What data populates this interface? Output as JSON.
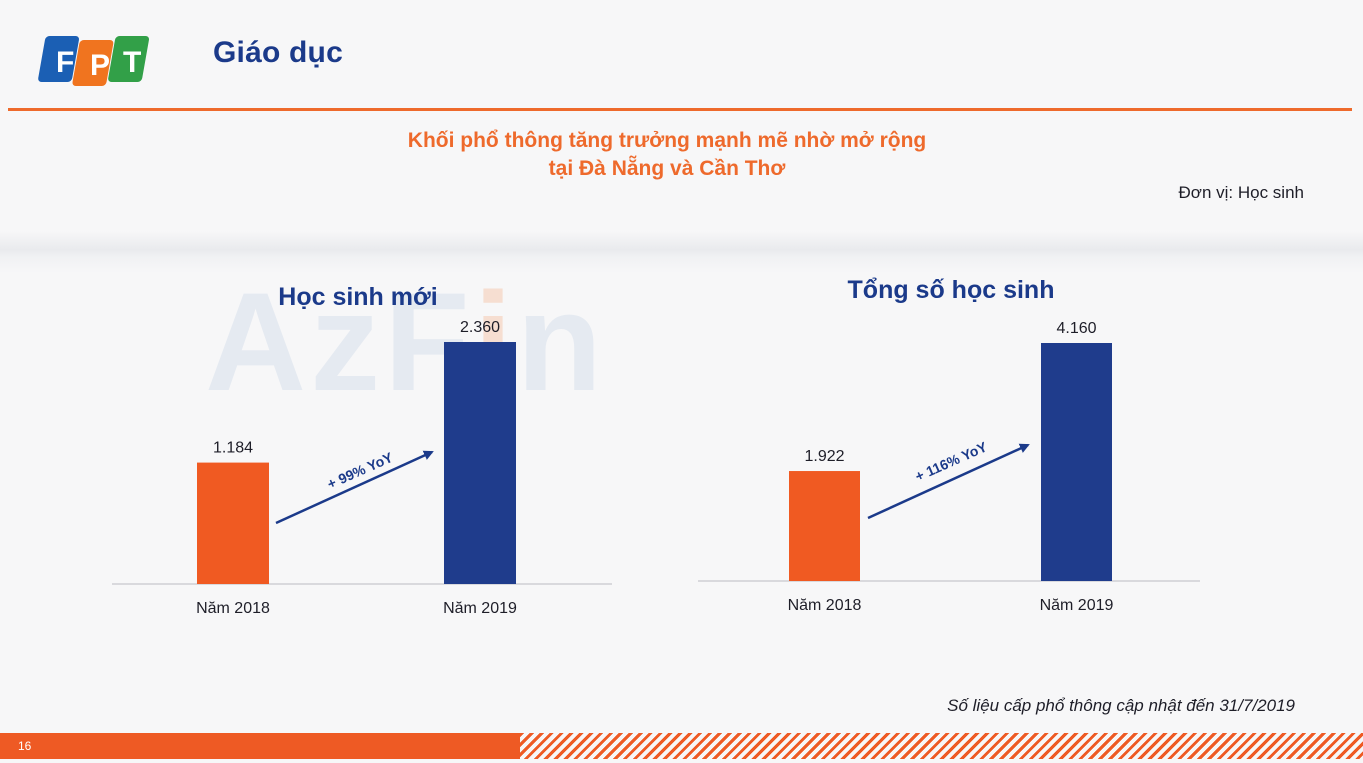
{
  "header": {
    "logo_text": "FPT",
    "title": "Giáo dục"
  },
  "headline": {
    "line1": "Khối phổ thông tăng trưởng mạnh mẽ nhờ mở rộng",
    "line2": "tại Đà Nẵng và Cần Thơ"
  },
  "unit_label": "Đơn vị: Học sinh",
  "watermark": {
    "text_main": "AzF",
    "text_accent": "i",
    "text_end": "n"
  },
  "colors": {
    "orange": "#ee6a2c",
    "navy": "#1b3a8a",
    "bar_2018": "#f05a22",
    "bar_2019": "#1f3c8c"
  },
  "chart_data": [
    {
      "type": "bar",
      "title": "Học sinh mới",
      "categories": [
        "Năm 2018",
        "Năm 2019"
      ],
      "values": [
        1184,
        2360
      ],
      "value_labels": [
        "1.184",
        "2.360"
      ],
      "annotation": "+ 99% YoY",
      "ylim": [
        0,
        2360
      ]
    },
    {
      "type": "bar",
      "title": "Tổng số học sinh",
      "categories": [
        "Năm 2018",
        "Năm 2019"
      ],
      "values": [
        1922,
        4160
      ],
      "value_labels": [
        "1.922",
        "4.160"
      ],
      "annotation": "+ 116% YoY",
      "ylim": [
        0,
        4160
      ]
    }
  ],
  "footnote": "Số liệu cấp phổ thông cập nhật đến 31/7/2019",
  "page_number": "16"
}
